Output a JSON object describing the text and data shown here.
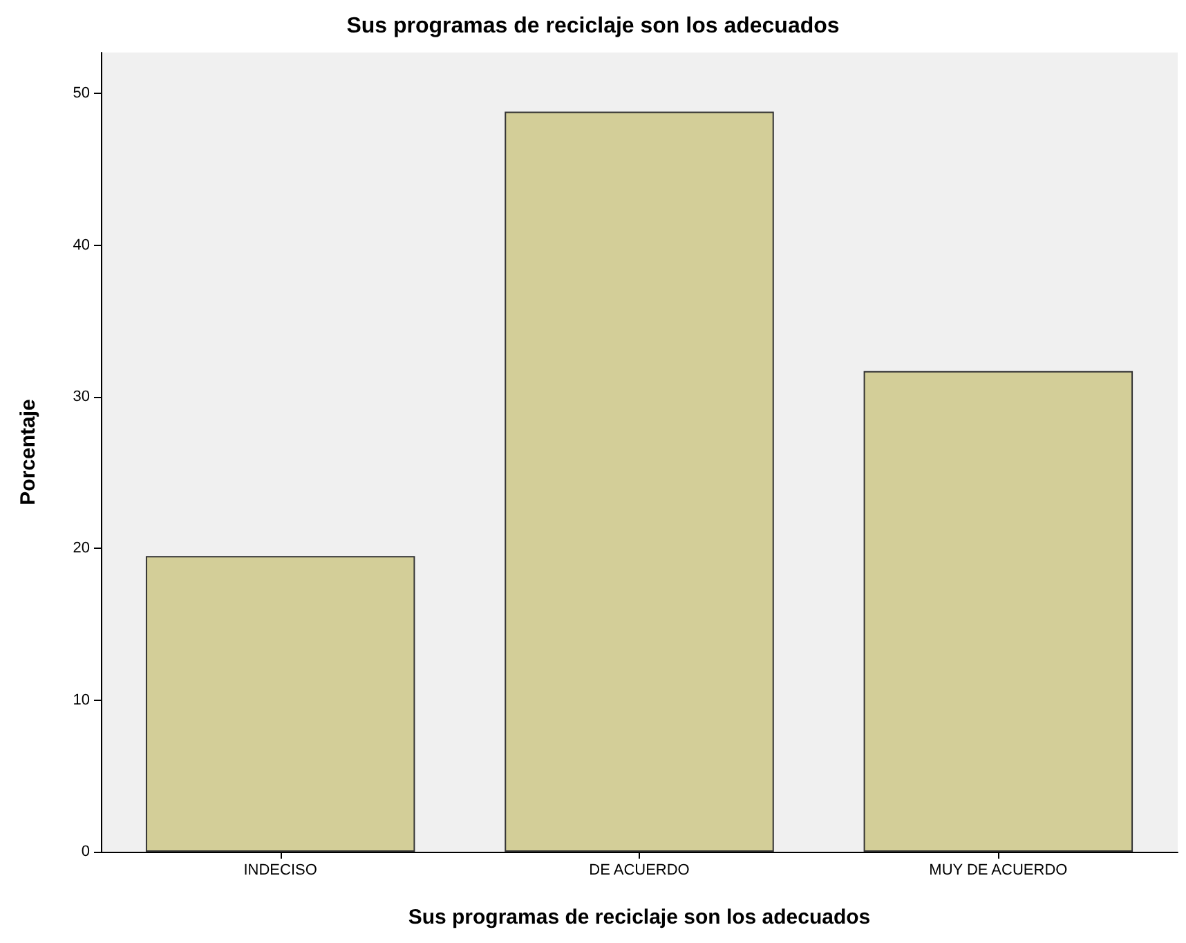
{
  "chart_data": {
    "type": "bar",
    "title": "Sus programas de reciclaje son los adecuados",
    "xlabel": "Sus programas de reciclaje son los adecuados",
    "ylabel": "Porcentaje",
    "categories": [
      "INDECISO",
      "DE ACUERDO",
      "MUY DE ACUERDO"
    ],
    "values": [
      19.5,
      48.8,
      31.7
    ],
    "color": "#d3ce98",
    "ylim": [
      0,
      52.7
    ],
    "yticks": [
      0,
      10,
      20,
      30,
      40,
      50
    ],
    "grid": false
  }
}
